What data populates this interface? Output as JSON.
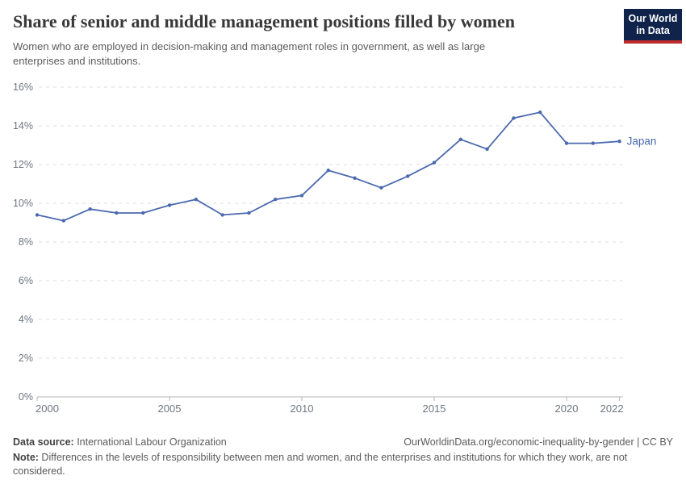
{
  "header": {
    "title": "Share of senior and middle management positions filled by women",
    "subtitle": "Women who are employed in decision-making and management roles in government, as well as large enterprises and institutions.",
    "logo": {
      "line1": "Our World",
      "line2": "in Data",
      "bg_color": "#0f234b",
      "stripe_color": "#be2d2d",
      "text_color": "#ffffff"
    }
  },
  "chart_data": {
    "type": "line",
    "title": "Share of senior and middle management positions filled by women",
    "xlabel": "",
    "ylabel": "",
    "ylim": [
      0,
      16
    ],
    "yticks": [
      0,
      2,
      4,
      6,
      8,
      10,
      12,
      14,
      16
    ],
    "ytick_suffix": "%",
    "xticks": [
      2000,
      2005,
      2010,
      2015,
      2020,
      2022
    ],
    "grid": "horizontal-dashed",
    "legend_position": "end-of-line-label",
    "series": [
      {
        "name": "Japan",
        "color": "#4b69af",
        "x": [
          2000,
          2001,
          2002,
          2003,
          2004,
          2005,
          2006,
          2007,
          2008,
          2009,
          2010,
          2011,
          2012,
          2013,
          2014,
          2015,
          2016,
          2017,
          2018,
          2019,
          2020,
          2021,
          2022
        ],
        "values": [
          9.4,
          9.1,
          9.7,
          9.5,
          9.5,
          9.9,
          10.2,
          9.4,
          9.5,
          10.2,
          10.4,
          11.7,
          11.3,
          10.8,
          11.4,
          12.1,
          13.3,
          12.8,
          14.4,
          14.7,
          13.1,
          13.1,
          13.2
        ]
      }
    ],
    "colors": {
      "gridline": "#dcdcdc",
      "axis": "#b4b4b4",
      "tick_label": "#6e7581"
    }
  },
  "footer": {
    "datasource_label": "Data source:",
    "datasource_value": " International Labour Organization",
    "link": "OurWorldinData.org/economic-inequality-by-gender | CC BY",
    "note_label": "Note:",
    "note_value": " Differences in the levels of responsibility between men and women, and the enterprises and institutions for which they work, are not considered."
  }
}
